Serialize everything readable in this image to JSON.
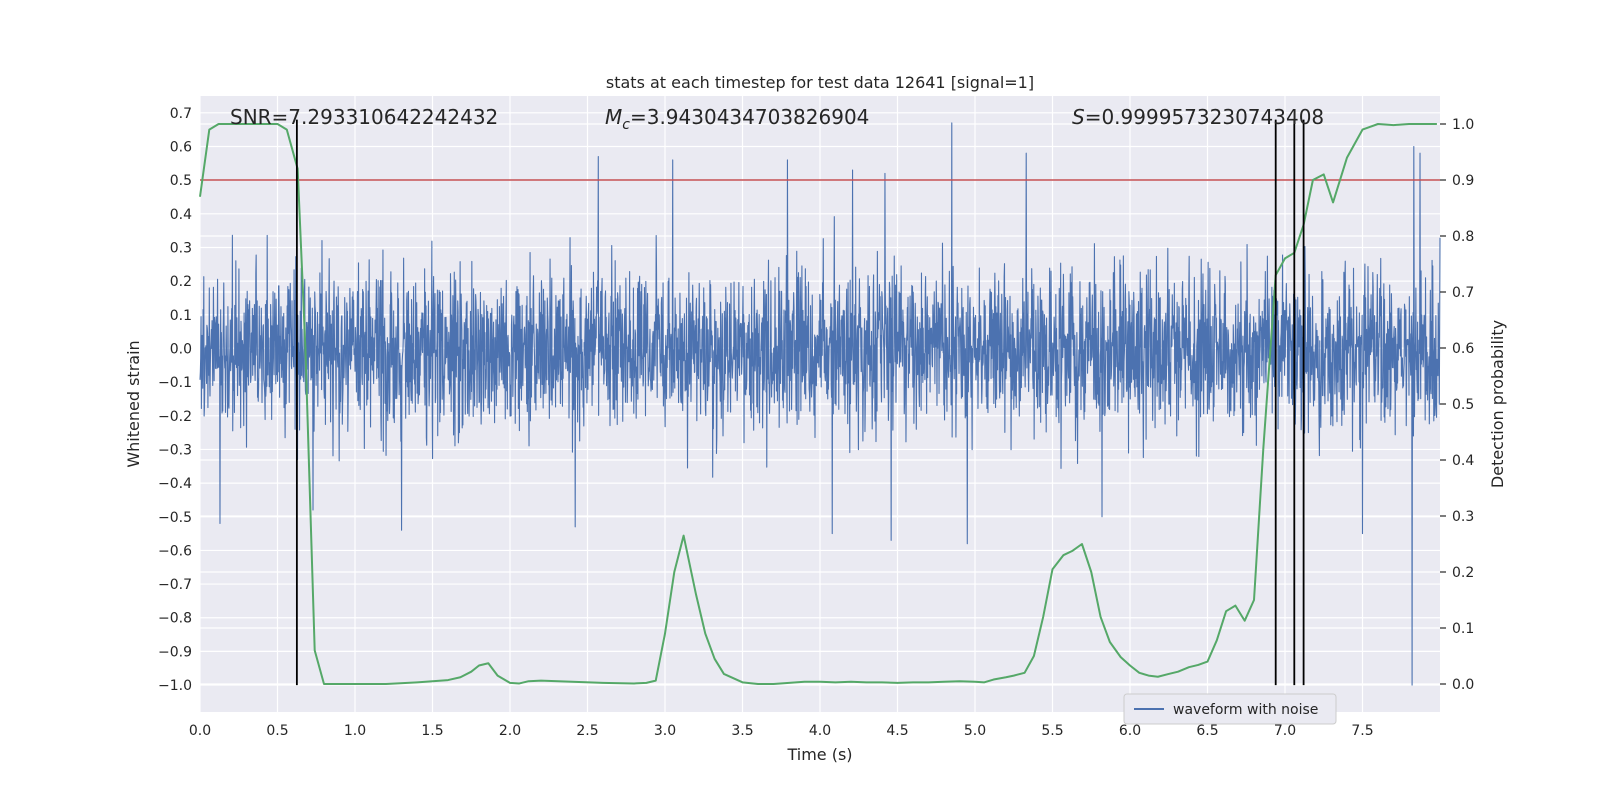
{
  "chart_data": {
    "type": "line",
    "title": "stats at each timestep for test data 12641 [signal=1]",
    "xlabel": "Time (s)",
    "ylabel_left": "Whitened strain",
    "ylabel_right": "Detection probability",
    "xlim": [
      0.0,
      8.0
    ],
    "ylim_left": [
      -1.08,
      0.75
    ],
    "ylim_right": [
      -0.05,
      1.05
    ],
    "x_ticks": [
      0.0,
      0.5,
      1.0,
      1.5,
      2.0,
      2.5,
      3.0,
      3.5,
      4.0,
      4.5,
      5.0,
      5.5,
      6.0,
      6.5,
      7.0,
      7.5
    ],
    "x_tick_labels": [
      "0.0",
      "0.5",
      "1.0",
      "1.5",
      "2.0",
      "2.5",
      "3.0",
      "3.5",
      "4.0",
      "4.5",
      "5.0",
      "5.5",
      "6.0",
      "6.5",
      "7.0",
      "7.5"
    ],
    "y_left_ticks": [
      0.7,
      0.6,
      0.5,
      0.4,
      0.3,
      0.2,
      0.1,
      0.0,
      -0.1,
      -0.2,
      -0.3,
      -0.4,
      -0.5,
      -0.6,
      -0.7,
      -0.8,
      -0.9,
      -1.0
    ],
    "y_left_tick_labels": [
      "0.7",
      "0.6",
      "0.5",
      "0.4",
      "0.3",
      "0.2",
      "0.1",
      "0.0",
      "−0.1",
      "−0.2",
      "−0.3",
      "−0.4",
      "−0.5",
      "−0.6",
      "−0.7",
      "−0.8",
      "−0.9",
      "−1.0"
    ],
    "y_right_ticks": [
      1.0,
      0.9,
      0.8,
      0.7,
      0.6,
      0.5,
      0.4,
      0.3,
      0.2,
      0.1,
      0.0
    ],
    "y_right_tick_labels": [
      "1.0",
      "0.9",
      "0.8",
      "0.7",
      "0.6",
      "0.5",
      "0.4",
      "0.3",
      "0.2",
      "0.1",
      "0.0"
    ],
    "grid": true,
    "annotations": {
      "snr": "SNR=7.293310642242432",
      "mc_symbol": "M",
      "mc_sub": "c",
      "mc_value": "=3.9430434703826904",
      "s_symbol": "S",
      "s_value": "=0.9999573230743408"
    },
    "threshold_line": {
      "axis": "right",
      "y": 0.9,
      "color": "#c44e52"
    },
    "vertical_lines": {
      "x": [
        0.625,
        6.94,
        7.06,
        7.12
      ],
      "y_range": [
        -1.0,
        0.68
      ],
      "color": "#000000"
    },
    "series": [
      {
        "name": "waveform with noise",
        "axis": "left",
        "color": "#4c72b0",
        "style": "dense noise",
        "x_range": [
          0.0,
          8.0
        ],
        "peaks": [
          {
            "x": 2.57,
            "y": 0.57
          },
          {
            "x": 3.05,
            "y": 0.56
          },
          {
            "x": 3.79,
            "y": 0.56
          },
          {
            "x": 4.21,
            "y": 0.53
          },
          {
            "x": 4.42,
            "y": 0.52
          },
          {
            "x": 4.85,
            "y": 0.67
          },
          {
            "x": 5.33,
            "y": 0.58
          },
          {
            "x": 7.83,
            "y": 0.6
          },
          {
            "x": 7.87,
            "y": 0.58
          },
          {
            "x": 0.13,
            "y": -0.52
          },
          {
            "x": 0.73,
            "y": -0.48
          },
          {
            "x": 1.3,
            "y": -0.54
          },
          {
            "x": 2.42,
            "y": -0.53
          },
          {
            "x": 4.08,
            "y": -0.55
          },
          {
            "x": 4.46,
            "y": -0.57
          },
          {
            "x": 4.95,
            "y": -0.58
          },
          {
            "x": 5.82,
            "y": -0.5
          },
          {
            "x": 7.5,
            "y": -0.55
          },
          {
            "x": 7.82,
            "y": -1.0
          }
        ]
      },
      {
        "name": "detection probability",
        "axis": "right",
        "color": "#55a868",
        "x": [
          0.0,
          0.06,
          0.12,
          0.2,
          0.3,
          0.4,
          0.5,
          0.56,
          0.63,
          0.68,
          0.74,
          0.8,
          0.9,
          1.0,
          1.2,
          1.4,
          1.5,
          1.6,
          1.68,
          1.75,
          1.8,
          1.86,
          1.92,
          2.0,
          2.06,
          2.12,
          2.2,
          2.4,
          2.6,
          2.8,
          2.88,
          2.94,
          3.0,
          3.06,
          3.12,
          3.2,
          3.26,
          3.32,
          3.38,
          3.5,
          3.6,
          3.7,
          3.8,
          3.9,
          4.0,
          4.1,
          4.2,
          4.3,
          4.4,
          4.5,
          4.6,
          4.7,
          4.8,
          4.9,
          5.0,
          5.06,
          5.12,
          5.2,
          5.25,
          5.32,
          5.38,
          5.44,
          5.5,
          5.57,
          5.63,
          5.69,
          5.75,
          5.81,
          5.87,
          5.94,
          6.0,
          6.06,
          6.12,
          6.18,
          6.25,
          6.31,
          6.38,
          6.44,
          6.5,
          6.56,
          6.62,
          6.68,
          6.74,
          6.8,
          6.86,
          6.94,
          7.0,
          7.06,
          7.12,
          7.18,
          7.25,
          7.31,
          7.4,
          7.5,
          7.6,
          7.7,
          7.8,
          7.9,
          7.98
        ],
        "values": [
          0.87,
          0.99,
          1.0,
          1.0,
          1.0,
          1.0,
          1.0,
          0.99,
          0.92,
          0.6,
          0.06,
          0.0,
          0.0,
          0.0,
          0.0,
          0.003,
          0.005,
          0.007,
          0.012,
          0.022,
          0.033,
          0.037,
          0.015,
          0.002,
          0.001,
          0.005,
          0.006,
          0.004,
          0.002,
          0.001,
          0.002,
          0.006,
          0.09,
          0.2,
          0.265,
          0.16,
          0.09,
          0.045,
          0.018,
          0.003,
          0.0,
          0.0,
          0.002,
          0.004,
          0.004,
          0.003,
          0.004,
          0.003,
          0.003,
          0.002,
          0.003,
          0.003,
          0.004,
          0.005,
          0.004,
          0.003,
          0.008,
          0.012,
          0.015,
          0.02,
          0.05,
          0.12,
          0.205,
          0.23,
          0.238,
          0.25,
          0.2,
          0.12,
          0.075,
          0.048,
          0.033,
          0.02,
          0.015,
          0.013,
          0.018,
          0.022,
          0.03,
          0.034,
          0.04,
          0.078,
          0.13,
          0.14,
          0.113,
          0.15,
          0.42,
          0.73,
          0.76,
          0.77,
          0.82,
          0.9,
          0.91,
          0.86,
          0.94,
          0.99,
          1.0,
          0.998,
          1.0,
          1.0,
          1.0
        ]
      }
    ],
    "legend": {
      "position": "lower-right",
      "entries": [
        "waveform with noise"
      ]
    }
  }
}
